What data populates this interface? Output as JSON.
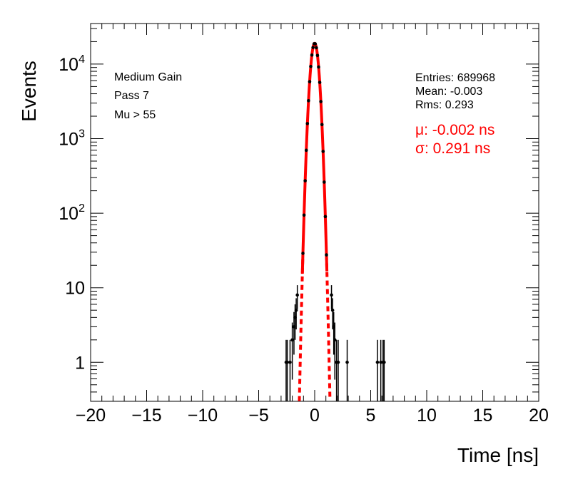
{
  "chart_data": {
    "type": "scatter",
    "xlabel": "Time [ns]",
    "ylabel": "Events",
    "xlim": [
      -20,
      20
    ],
    "ylim": [
      0.3,
      35000
    ],
    "yscale": "log",
    "x_ticks": [
      "−20",
      "−15",
      "−10",
      "−5",
      "0",
      "5",
      "10",
      "15",
      "20"
    ],
    "x_tick_values": [
      -20,
      -15,
      -10,
      -5,
      0,
      5,
      10,
      15,
      20
    ],
    "y_ticks": [
      {
        "value": 1,
        "base": "1",
        "exp": ""
      },
      {
        "value": 10,
        "base": "10",
        "exp": ""
      },
      {
        "value": 100,
        "base": "10",
        "exp": "2"
      },
      {
        "value": 1000,
        "base": "10",
        "exp": "3"
      },
      {
        "value": 10000,
        "base": "10",
        "exp": "4"
      }
    ],
    "annotations": [
      "Medium Gain",
      "Pass 7",
      "Mu > 55"
    ],
    "stats": {
      "entries": "Entries: 689968",
      "mean": "Mean: -0.003",
      "rms": "Rms: 0.293"
    },
    "fit": {
      "mu_label": "μ: -0.002 ns",
      "sigma_label": "σ: 0.291 ns",
      "mu": -0.002,
      "sigma": 0.291,
      "amplitude": 19000,
      "color": "#ff0000"
    },
    "histogram": {
      "bin_width": 0.1,
      "marker_color": "#000000",
      "tail_points": [
        {
          "x": -2.55,
          "y": 1
        },
        {
          "x": -2.45,
          "y": 1
        },
        {
          "x": -2.2,
          "y": 1
        },
        {
          "x": -2.0,
          "y": 2
        },
        {
          "x": -1.85,
          "y": 3
        },
        {
          "x": -1.75,
          "y": 4
        },
        {
          "x": -1.65,
          "y": 5
        },
        {
          "x": -1.55,
          "y": 8
        },
        {
          "x": 1.5,
          "y": 8
        },
        {
          "x": 1.6,
          "y": 5
        },
        {
          "x": 1.7,
          "y": 3
        },
        {
          "x": 1.8,
          "y": 2
        },
        {
          "x": 1.95,
          "y": 1
        },
        {
          "x": 2.1,
          "y": 1
        },
        {
          "x": 2.9,
          "y": 1
        },
        {
          "x": 5.6,
          "y": 1
        },
        {
          "x": 5.9,
          "y": 1
        },
        {
          "x": 6.1,
          "y": 1
        },
        {
          "x": 6.2,
          "y": 1
        }
      ]
    }
  }
}
